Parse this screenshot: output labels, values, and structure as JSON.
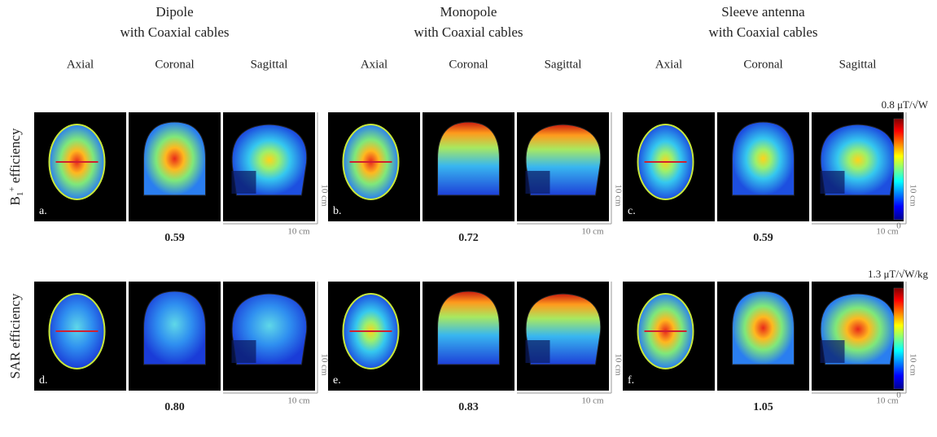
{
  "columns": [
    {
      "title_line1": "Dipole",
      "title_line2": "with Coaxial cables"
    },
    {
      "title_line1": "Monopole",
      "title_line2": "with Coaxial cables"
    },
    {
      "title_line1": "Sleeve antenna",
      "title_line2": "with Coaxial cables"
    }
  ],
  "views": [
    "Axial",
    "Coronal",
    "Sagittal"
  ],
  "scale_label": "10 cm",
  "rows": [
    {
      "label_parts": [
        "B",
        "1",
        "+",
        " efficiency"
      ],
      "colorbar_max": "0.8 μT/√W",
      "colorbar_min": "0",
      "panels": [
        {
          "letter": "a.",
          "value": "0.59"
        },
        {
          "letter": "b.",
          "value": "0.72"
        },
        {
          "letter": "c.",
          "value": "0.59"
        }
      ]
    },
    {
      "label_parts": [
        "SAR efficiency"
      ],
      "colorbar_max": "1.3 μT/√W/kg",
      "colorbar_min": "0",
      "panels": [
        {
          "letter": "d.",
          "value": "0.80"
        },
        {
          "letter": "e.",
          "value": "0.83"
        },
        {
          "letter": "f.",
          "value": "1.05"
        }
      ]
    }
  ]
}
